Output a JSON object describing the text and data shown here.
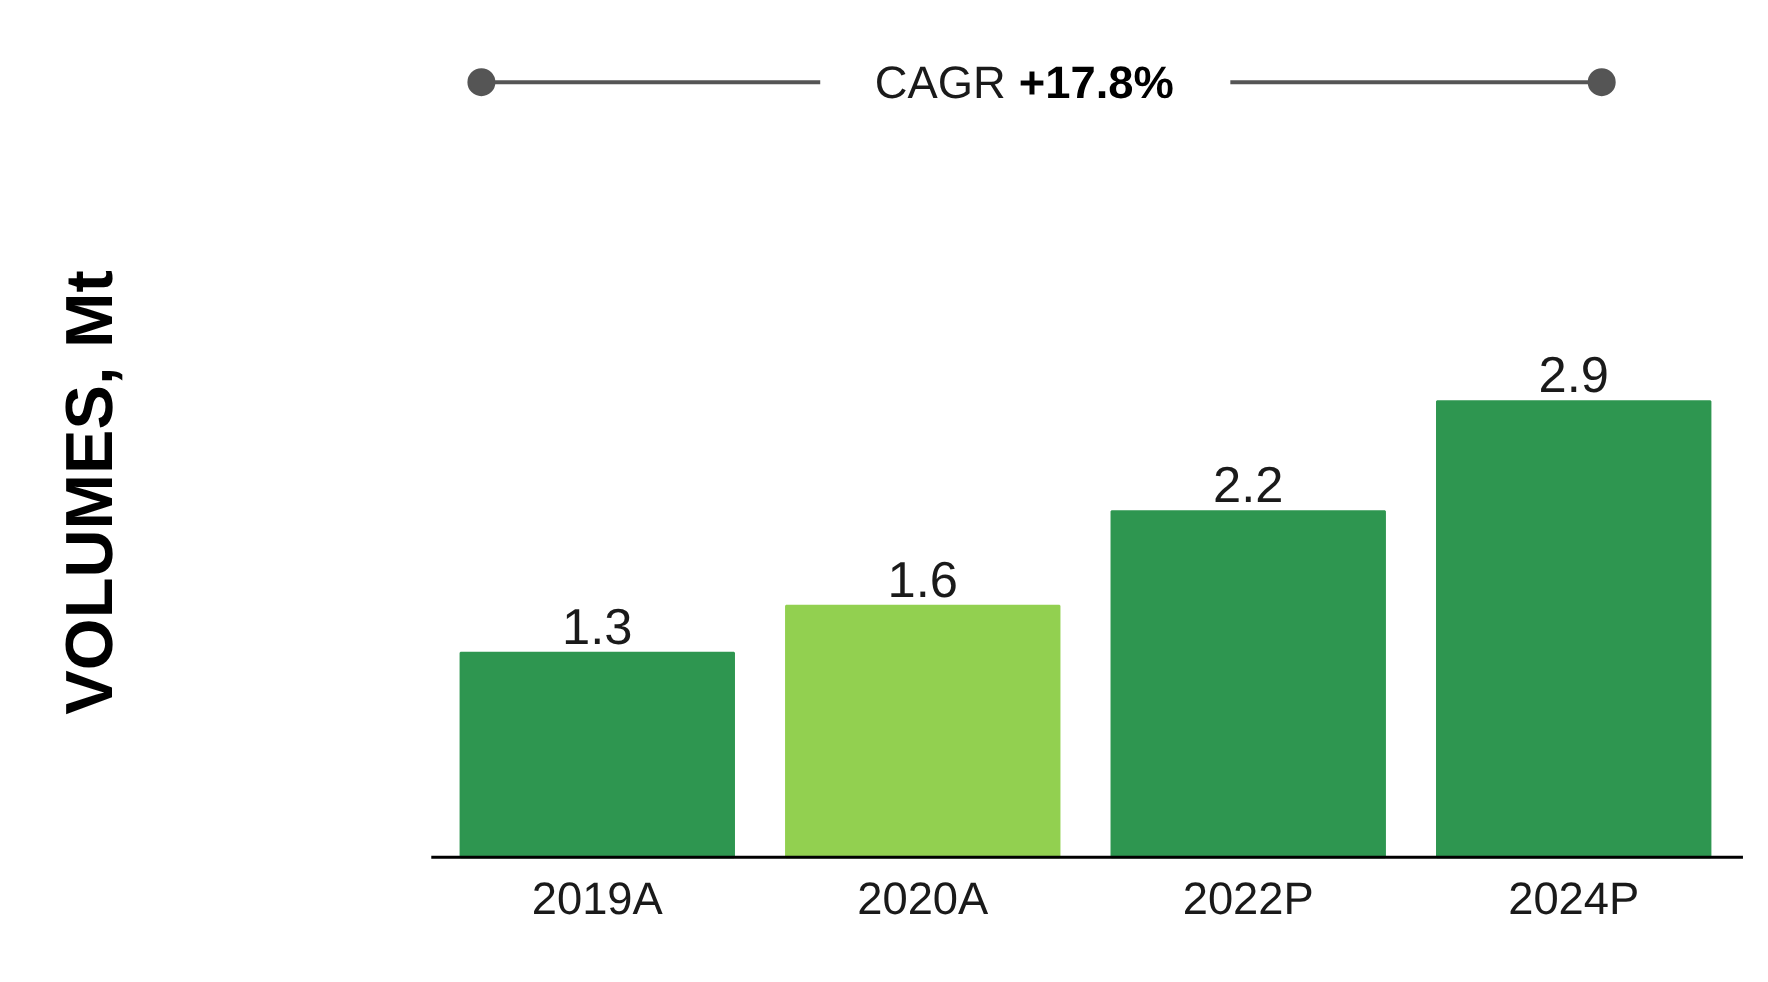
{
  "chart_data": {
    "type": "bar",
    "ylabel": "VOLUMES, Mt",
    "categories": [
      "2019A",
      "2020A",
      "2022P",
      "2024P"
    ],
    "values": [
      1.3,
      1.6,
      2.2,
      2.9
    ],
    "colors": [
      "#2e9650",
      "#92d050",
      "#2e9650",
      "#2e9650"
    ],
    "data_labels": true,
    "annotations": [
      "CAGR +17.8%"
    ]
  }
}
